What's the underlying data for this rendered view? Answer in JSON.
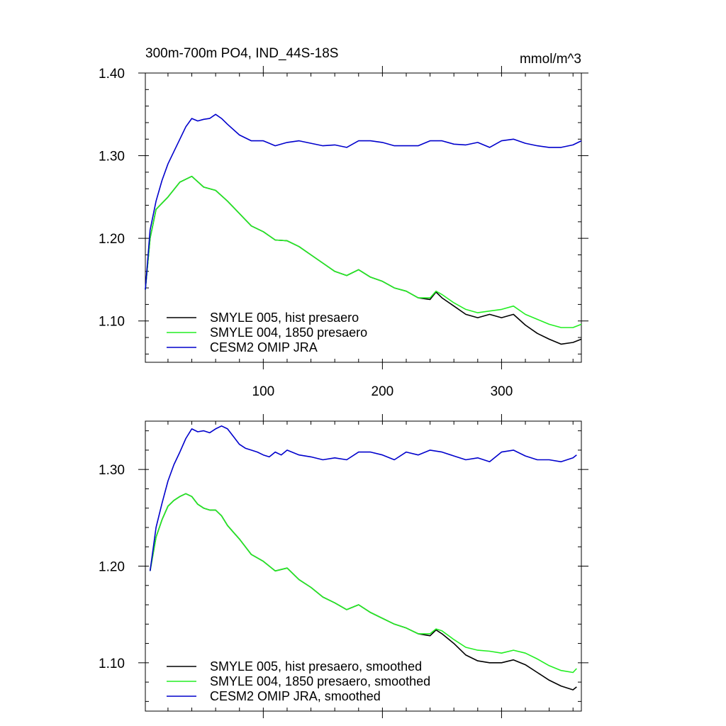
{
  "chart_data": [
    {
      "type": "line",
      "title": "300m-700m PO4, IND_44S-18S",
      "units": "mmol/m^3",
      "xlabel": "",
      "ylabel": "",
      "xlim": [
        1,
        367
      ],
      "ylim": [
        1.05,
        1.4
      ],
      "x_ticks": [
        100,
        200,
        300
      ],
      "x_tick_labels": [
        "100",
        "200",
        "300"
      ],
      "y_ticks": [
        1.1,
        1.2,
        1.3,
        1.4
      ],
      "y_tick_labels": [
        "1.10",
        "1.20",
        "1.30",
        "1.40"
      ],
      "legend_position": "bottom-left",
      "series": [
        {
          "name": "SMYLE 005, hist presaero",
          "color": "#000000",
          "x": [
            1,
            5,
            10,
            20,
            30,
            40,
            50,
            60,
            70,
            80,
            90,
            100,
            110,
            120,
            130,
            140,
            150,
            160,
            170,
            180,
            190,
            200,
            210,
            220,
            230,
            240,
            245,
            250,
            260,
            270,
            280,
            290,
            300,
            310,
            320,
            330,
            340,
            350,
            360,
            367
          ],
          "y": [
            1.138,
            1.2,
            1.235,
            1.25,
            1.268,
            1.275,
            1.262,
            1.258,
            1.245,
            1.23,
            1.215,
            1.208,
            1.198,
            1.197,
            1.19,
            1.18,
            1.17,
            1.16,
            1.155,
            1.162,
            1.153,
            1.148,
            1.14,
            1.136,
            1.128,
            1.126,
            1.135,
            1.128,
            1.118,
            1.108,
            1.104,
            1.108,
            1.104,
            1.108,
            1.095,
            1.085,
            1.078,
            1.072,
            1.074,
            1.078
          ]
        },
        {
          "name": "SMYLE 004, 1850 presaero",
          "color": "#22ee22",
          "x": [
            1,
            5,
            10,
            20,
            30,
            40,
            50,
            60,
            70,
            80,
            90,
            100,
            110,
            120,
            130,
            140,
            150,
            160,
            170,
            180,
            190,
            200,
            210,
            220,
            230,
            240,
            245,
            250,
            260,
            270,
            280,
            290,
            300,
            310,
            320,
            330,
            340,
            350,
            360,
            367
          ],
          "y": [
            1.138,
            1.2,
            1.235,
            1.25,
            1.268,
            1.275,
            1.262,
            1.258,
            1.245,
            1.23,
            1.215,
            1.208,
            1.198,
            1.197,
            1.19,
            1.18,
            1.17,
            1.16,
            1.155,
            1.162,
            1.153,
            1.148,
            1.14,
            1.136,
            1.128,
            1.128,
            1.136,
            1.132,
            1.122,
            1.114,
            1.11,
            1.112,
            1.114,
            1.118,
            1.108,
            1.102,
            1.096,
            1.092,
            1.092,
            1.096
          ]
        },
        {
          "name": "CESM2 OMIP JRA",
          "color": "#0000cc",
          "x": [
            1,
            5,
            10,
            15,
            20,
            25,
            30,
            35,
            40,
            45,
            50,
            55,
            60,
            65,
            70,
            80,
            90,
            100,
            110,
            120,
            130,
            140,
            150,
            160,
            170,
            180,
            190,
            200,
            210,
            220,
            230,
            240,
            250,
            260,
            270,
            280,
            290,
            300,
            310,
            320,
            330,
            340,
            350,
            360,
            367
          ],
          "y": [
            1.138,
            1.21,
            1.245,
            1.27,
            1.29,
            1.305,
            1.32,
            1.335,
            1.345,
            1.342,
            1.344,
            1.345,
            1.35,
            1.345,
            1.338,
            1.325,
            1.318,
            1.318,
            1.312,
            1.316,
            1.318,
            1.315,
            1.312,
            1.313,
            1.31,
            1.318,
            1.318,
            1.316,
            1.312,
            1.312,
            1.312,
            1.318,
            1.318,
            1.314,
            1.313,
            1.316,
            1.31,
            1.318,
            1.32,
            1.315,
            1.312,
            1.31,
            1.31,
            1.313,
            1.318
          ]
        }
      ]
    },
    {
      "type": "line",
      "title": "",
      "xlabel": "",
      "ylabel": "",
      "xlim": [
        1,
        367
      ],
      "ylim": [
        1.05,
        1.35
      ],
      "x_ticks": [
        100,
        200,
        300
      ],
      "y_ticks": [
        1.1,
        1.2,
        1.3
      ],
      "y_tick_labels": [
        "1.10",
        "1.20",
        "1.30"
      ],
      "legend_position": "bottom-left",
      "series": [
        {
          "name": "SMYLE 005, hist presaero, smoothed",
          "color": "#000000",
          "x": [
            5,
            10,
            15,
            20,
            25,
            30,
            35,
            40,
            45,
            50,
            55,
            60,
            65,
            70,
            75,
            80,
            90,
            100,
            110,
            120,
            130,
            140,
            150,
            160,
            170,
            180,
            190,
            200,
            210,
            220,
            230,
            240,
            245,
            250,
            260,
            270,
            280,
            290,
            300,
            310,
            320,
            330,
            340,
            350,
            360,
            363
          ],
          "y": [
            1.195,
            1.23,
            1.248,
            1.262,
            1.268,
            1.272,
            1.275,
            1.272,
            1.264,
            1.26,
            1.258,
            1.258,
            1.252,
            1.242,
            1.235,
            1.228,
            1.212,
            1.205,
            1.195,
            1.198,
            1.186,
            1.178,
            1.168,
            1.162,
            1.155,
            1.16,
            1.152,
            1.146,
            1.14,
            1.136,
            1.13,
            1.128,
            1.134,
            1.13,
            1.12,
            1.108,
            1.102,
            1.1,
            1.1,
            1.103,
            1.098,
            1.09,
            1.082,
            1.076,
            1.072,
            1.075
          ]
        },
        {
          "name": "SMYLE 004, 1850 presaero, smoothed",
          "color": "#22ee22",
          "x": [
            5,
            10,
            15,
            20,
            25,
            30,
            35,
            40,
            45,
            50,
            55,
            60,
            65,
            70,
            75,
            80,
            90,
            100,
            110,
            120,
            130,
            140,
            150,
            160,
            170,
            180,
            190,
            200,
            210,
            220,
            230,
            240,
            245,
            250,
            260,
            270,
            280,
            290,
            300,
            310,
            320,
            330,
            340,
            350,
            360,
            363
          ],
          "y": [
            1.195,
            1.23,
            1.248,
            1.262,
            1.268,
            1.272,
            1.275,
            1.272,
            1.264,
            1.26,
            1.258,
            1.258,
            1.252,
            1.242,
            1.235,
            1.228,
            1.212,
            1.205,
            1.195,
            1.198,
            1.186,
            1.178,
            1.168,
            1.162,
            1.155,
            1.16,
            1.152,
            1.146,
            1.14,
            1.136,
            1.13,
            1.13,
            1.135,
            1.133,
            1.124,
            1.116,
            1.113,
            1.112,
            1.11,
            1.113,
            1.11,
            1.104,
            1.097,
            1.092,
            1.09,
            1.094
          ]
        },
        {
          "name": "CESM2 OMIP JRA, smoothed",
          "color": "#0000cc",
          "x": [
            5,
            10,
            15,
            20,
            25,
            30,
            35,
            40,
            45,
            50,
            55,
            60,
            65,
            70,
            75,
            80,
            85,
            90,
            95,
            100,
            105,
            110,
            115,
            120,
            130,
            140,
            150,
            160,
            170,
            180,
            190,
            200,
            210,
            220,
            230,
            240,
            250,
            260,
            270,
            280,
            290,
            300,
            310,
            320,
            330,
            340,
            350,
            360,
            363
          ],
          "y": [
            1.195,
            1.24,
            1.265,
            1.288,
            1.305,
            1.318,
            1.332,
            1.342,
            1.339,
            1.34,
            1.338,
            1.342,
            1.345,
            1.342,
            1.334,
            1.326,
            1.322,
            1.32,
            1.318,
            1.315,
            1.313,
            1.318,
            1.315,
            1.32,
            1.315,
            1.313,
            1.31,
            1.312,
            1.31,
            1.318,
            1.318,
            1.315,
            1.31,
            1.318,
            1.315,
            1.32,
            1.318,
            1.314,
            1.31,
            1.312,
            1.308,
            1.318,
            1.32,
            1.314,
            1.31,
            1.31,
            1.308,
            1.312,
            1.315
          ]
        }
      ]
    }
  ]
}
